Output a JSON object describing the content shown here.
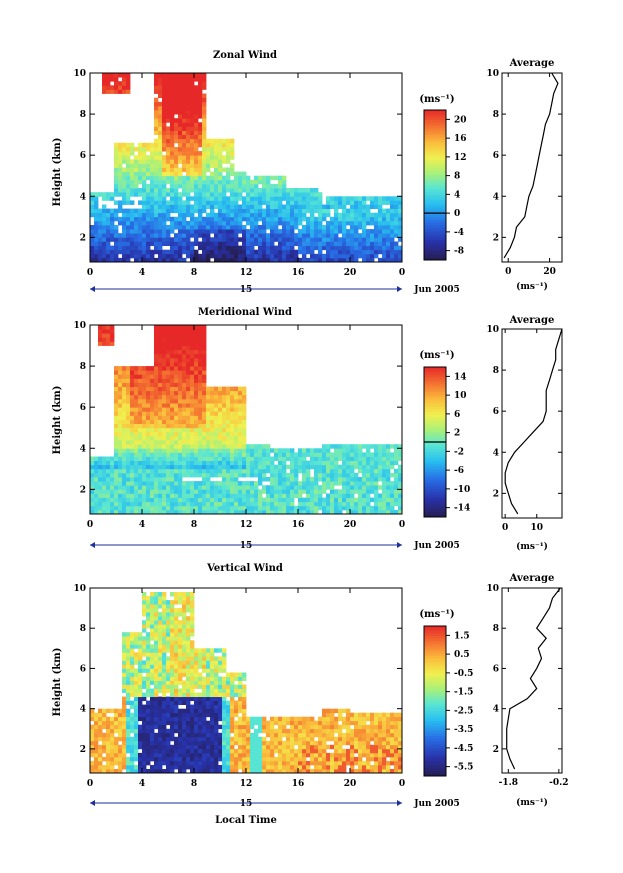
{
  "chart_data": [
    {
      "type": "heatmap",
      "title": "Zonal Wind",
      "ylabel": "Height (km)",
      "yticks": [
        "2",
        "4",
        "6",
        "8",
        "10"
      ],
      "ylim": [
        0.8,
        10
      ],
      "xticks": [
        "0",
        "4",
        "8",
        "12",
        "16",
        "20",
        "0"
      ],
      "xlim": [
        0,
        24
      ],
      "date_day": "15",
      "date_label": "Jun 2005",
      "unit_label": "(ms⁻¹)",
      "colorbar_ticks": [
        "20",
        "16",
        "12",
        "8",
        "4",
        "0",
        "-4",
        "-8"
      ],
      "colorbar_range": [
        -10,
        22
      ],
      "zero_contour_level": 0,
      "field": "zonal",
      "profile": {
        "title": "Average",
        "xlabel": "(ms⁻¹)",
        "xticks": [
          "0",
          "20"
        ],
        "xlim": [
          -3,
          26
        ],
        "yticks": [
          "2",
          "4",
          "6",
          "8",
          "10"
        ],
        "height": [
          1.0,
          1.5,
          2.0,
          2.5,
          3.0,
          3.5,
          4.0,
          4.5,
          5.0,
          5.5,
          6.0,
          6.5,
          7.0,
          7.5,
          8.0,
          8.5,
          9.0,
          9.5,
          10.0
        ],
        "value": [
          -2,
          1,
          3,
          4,
          8,
          9,
          10,
          12,
          13,
          14,
          15,
          16,
          17,
          18,
          20,
          21,
          22,
          24,
          21
        ]
      }
    },
    {
      "type": "heatmap",
      "title": "Meridional Wind",
      "ylabel": "Height (km)",
      "yticks": [
        "2",
        "4",
        "6",
        "8",
        "10"
      ],
      "ylim": [
        0.8,
        10
      ],
      "xticks": [
        "0",
        "4",
        "8",
        "12",
        "16",
        "20",
        "0"
      ],
      "xlim": [
        0,
        24
      ],
      "date_day": "15",
      "date_label": "Jun 2005",
      "unit_label": "(ms⁻¹)",
      "colorbar_ticks": [
        "14",
        "10",
        "6",
        "2",
        "-2",
        "-6",
        "-10",
        "-14"
      ],
      "colorbar_range": [
        -16,
        16
      ],
      "zero_contour_level": 0,
      "field": "meridional",
      "profile": {
        "title": "Average",
        "xlabel": "(ms⁻¹)",
        "xticks": [
          "0",
          "10"
        ],
        "xlim": [
          -1,
          18
        ],
        "yticks": [
          "2",
          "4",
          "6",
          "8",
          "10"
        ],
        "height": [
          1.0,
          1.5,
          2.0,
          2.5,
          3.0,
          3.5,
          4.0,
          4.5,
          5.0,
          5.5,
          6.0,
          6.5,
          7.0,
          7.5,
          8.0,
          8.5,
          9.0,
          9.5,
          10.0
        ],
        "value": [
          4,
          2,
          1,
          0,
          0,
          1,
          3,
          6,
          9,
          12,
          13,
          13,
          13,
          14,
          15,
          16,
          16,
          17,
          18
        ]
      }
    },
    {
      "type": "heatmap",
      "title": "Vertical Wind",
      "ylabel": "Height (km)",
      "yticks": [
        "2",
        "4",
        "6",
        "8",
        "10"
      ],
      "ylim": [
        0.8,
        10
      ],
      "xticks": [
        "0",
        "4",
        "8",
        "12",
        "16",
        "20",
        "0"
      ],
      "xlim": [
        0,
        24
      ],
      "date_day": "15",
      "date_label": "Jun 2005",
      "xlabel": "Local Time",
      "unit_label": "(ms⁻¹)",
      "colorbar_ticks": [
        "1.5",
        "0.5",
        "-0.5",
        "-1.5",
        "-2.5",
        "-3.5",
        "-4.5",
        "-5.5"
      ],
      "colorbar_range": [
        -6.0,
        2.0
      ],
      "field": "vertical",
      "profile": {
        "title": "Average",
        "xlabel": "(ms⁻¹)",
        "xticks": [
          "-1.8",
          "-0.2"
        ],
        "xlim": [
          -2.0,
          -0.1
        ],
        "yticks": [
          "2",
          "4",
          "6",
          "8",
          "10"
        ],
        "height": [
          1.0,
          1.5,
          2.0,
          2.5,
          3.0,
          3.5,
          4.0,
          4.5,
          5.0,
          5.5,
          6.0,
          6.5,
          7.0,
          7.5,
          8.0,
          8.5,
          9.0,
          9.5,
          10.0
        ],
        "value": [
          -1.6,
          -1.75,
          -1.85,
          -1.85,
          -1.85,
          -1.8,
          -1.75,
          -1.2,
          -0.9,
          -1.1,
          -0.9,
          -0.75,
          -0.85,
          -0.6,
          -0.9,
          -0.7,
          -0.5,
          -0.4,
          -0.15
        ]
      }
    }
  ]
}
